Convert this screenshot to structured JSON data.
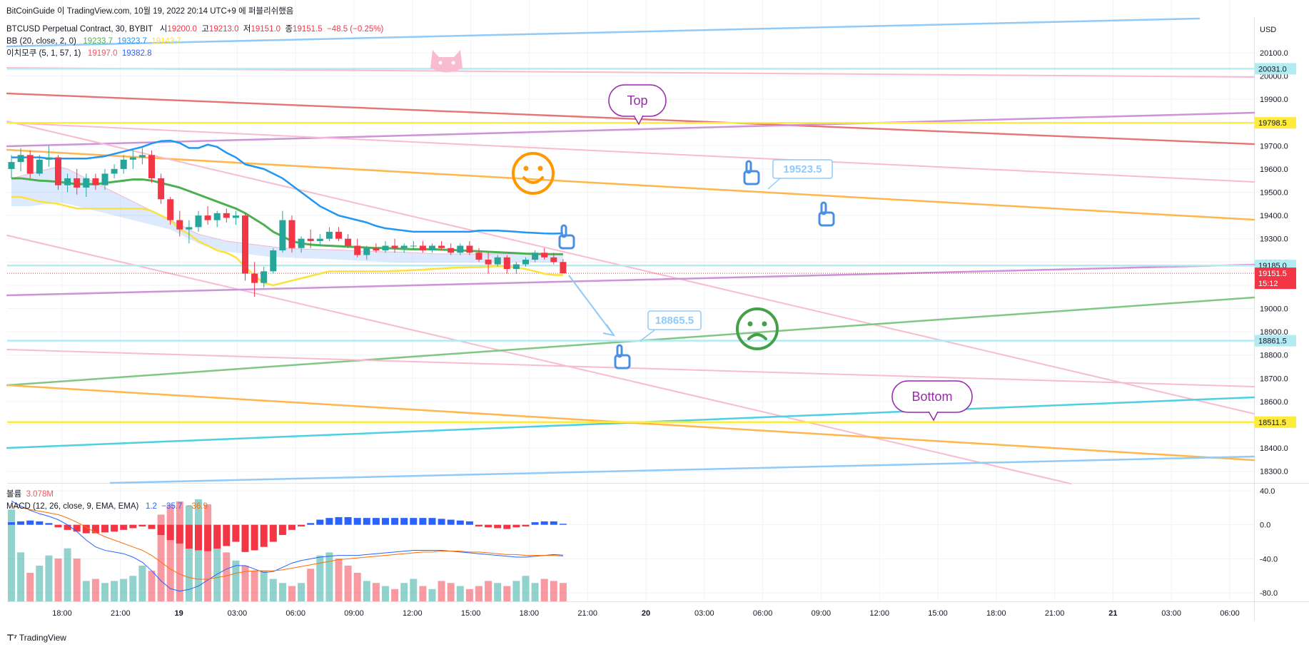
{
  "header": {
    "attribution": "BitCoinGuide 이 TradingView.com, 10월 19, 2022 20:14 UTC+9 에 퍼블리쉬했음",
    "symbol": "BTCUSD Perpetual Contract, 30, BYBIT",
    "open_label": "시",
    "open_value": "19200.0",
    "high_label": "고",
    "high_value": "19213.0",
    "low_label": "저",
    "low_value": "19151.0",
    "close_label": "종",
    "close_value": "19151.5",
    "change": "−48.5 (−0.25%)",
    "bb_label": "BB (20, close, 2, 0)",
    "bb_basis": "19233.7",
    "bb_upper": "19323.7",
    "bb_lower": "19143.7",
    "ichimoku_label": "이치모쿠 (5, 1, 57, 1)",
    "ichimoku_a": "19197.0",
    "ichimoku_b": "19382.8",
    "volume_label": "볼륨",
    "volume_value": "3.078M",
    "macd_label": "MACD (12, 26, close, 9, EMA, EMA)",
    "macd_hist": "1.2",
    "macd_line": "−35.7",
    "macd_signal": "−36.9",
    "brand": "TradingView",
    "brand_icon": "tradingview-logo-icon"
  },
  "colors": {
    "up": "#26a69a",
    "down": "#f23645",
    "bb_basis": "#4caf50",
    "bb_upper": "#2196f3",
    "bb_lower": "#fbe23c",
    "grid": "#f0f3fa",
    "axis_text": "#131722"
  },
  "chart_data": [
    {
      "type": "candlestick",
      "title": "BTCUSD Perpetual Contract, 30, BYBIT",
      "y_axis": {
        "currency": "USD",
        "range": [
          18250,
          20250
        ],
        "ticks": [
          "20100.0",
          "20000.0",
          "19900.0",
          "19800.0",
          "19700.0",
          "19600.0",
          "19500.0",
          "19400.0",
          "19300.0",
          "19200.0",
          "19100.0",
          "19000.0",
          "18900.0",
          "18800.0",
          "18700.0",
          "18600.0",
          "18500.0",
          "18400.0",
          "18300.0"
        ]
      },
      "x_axis": {
        "ticks": [
          "18:00",
          "21:00",
          "19",
          "03:00",
          "06:00",
          "09:00",
          "12:00",
          "15:00",
          "18:00",
          "21:00",
          "20",
          "03:00",
          "06:00",
          "09:00",
          "12:00",
          "15:00",
          "18:00",
          "21:00",
          "21",
          "03:00",
          "06:00"
        ],
        "bar_interval_minutes": 30
      },
      "price_labels": [
        {
          "value": 20031.0,
          "text": "20031.0",
          "bg": "#b2ebf2"
        },
        {
          "value": 19798.5,
          "text": "19798.5",
          "bg": "#ffeb3b"
        },
        {
          "value": 19185.0,
          "text": "19185.0",
          "bg": "#b2ebf2"
        },
        {
          "value": 19151.5,
          "text": "19151.5",
          "bg": "#f23645",
          "sub": "15:12"
        },
        {
          "value": 18861.5,
          "text": "18861.5",
          "bg": "#b2ebf2"
        },
        {
          "value": 18511.5,
          "text": "18511.5",
          "bg": "#ffeb3b"
        }
      ],
      "horizontal_lines": [
        {
          "value": 20031.0,
          "color": "#b2ebf2"
        },
        {
          "value": 19798.5,
          "color": "#ffeb3b"
        },
        {
          "value": 19185.0,
          "color": "#b2ebf2"
        },
        {
          "value": 18861.5,
          "color": "#b2ebf2"
        },
        {
          "value": 18511.5,
          "color": "#ffeb3b"
        }
      ],
      "candles": [
        [
          19600,
          19660,
          19560,
          19630
        ],
        [
          19630,
          19690,
          19590,
          19660
        ],
        [
          19660,
          19680,
          19560,
          19580
        ],
        [
          19580,
          19660,
          19570,
          19640
        ],
        [
          19640,
          19700,
          19610,
          19650
        ],
        [
          19650,
          19660,
          19510,
          19530
        ],
        [
          19530,
          19580,
          19500,
          19560
        ],
        [
          19560,
          19600,
          19490,
          19520
        ],
        [
          19520,
          19580,
          19480,
          19560
        ],
        [
          19560,
          19580,
          19510,
          19530
        ],
        [
          19530,
          19600,
          19510,
          19580
        ],
        [
          19580,
          19620,
          19560,
          19600
        ],
        [
          19600,
          19660,
          19580,
          19640
        ],
        [
          19640,
          19680,
          19600,
          19650
        ],
        [
          19650,
          19690,
          19620,
          19660
        ],
        [
          19660,
          19680,
          19540,
          19560
        ],
        [
          19560,
          19580,
          19450,
          19470
        ],
        [
          19470,
          19480,
          19360,
          19380
        ],
        [
          19380,
          19420,
          19310,
          19340
        ],
        [
          19340,
          19380,
          19280,
          19350
        ],
        [
          19350,
          19420,
          19330,
          19400
        ],
        [
          19400,
          19440,
          19360,
          19380
        ],
        [
          19380,
          19420,
          19350,
          19410
        ],
        [
          19410,
          19430,
          19370,
          19390
        ],
        [
          19390,
          19420,
          19360,
          19400
        ],
        [
          19400,
          19410,
          19120,
          19150
        ],
        [
          19150,
          19200,
          19050,
          19110
        ],
        [
          19110,
          19180,
          19090,
          19160
        ],
        [
          19160,
          19260,
          19150,
          19250
        ],
        [
          19250,
          19420,
          19240,
          19380
        ],
        [
          19380,
          19400,
          19240,
          19260
        ],
        [
          19260,
          19310,
          19240,
          19300
        ],
        [
          19300,
          19340,
          19260,
          19290
        ],
        [
          19290,
          19320,
          19270,
          19300
        ],
        [
          19300,
          19350,
          19290,
          19330
        ],
        [
          19330,
          19350,
          19290,
          19300
        ],
        [
          19300,
          19320,
          19260,
          19270
        ],
        [
          19270,
          19300,
          19220,
          19230
        ],
        [
          19230,
          19270,
          19210,
          19260
        ],
        [
          19260,
          19280,
          19240,
          19250
        ],
        [
          19250,
          19290,
          19240,
          19270
        ],
        [
          19270,
          19300,
          19240,
          19260
        ],
        [
          19260,
          19280,
          19240,
          19270
        ],
        [
          19270,
          19290,
          19250,
          19270
        ],
        [
          19270,
          19290,
          19240,
          19250
        ],
        [
          19250,
          19280,
          19240,
          19270
        ],
        [
          19270,
          19290,
          19250,
          19260
        ],
        [
          19260,
          19280,
          19230,
          19240
        ],
        [
          19240,
          19280,
          19230,
          19270
        ],
        [
          19270,
          19290,
          19230,
          19240
        ],
        [
          19240,
          19260,
          19200,
          19210
        ],
        [
          19210,
          19240,
          19150,
          19190
        ],
        [
          19190,
          19230,
          19180,
          19220
        ],
        [
          19220,
          19230,
          19150,
          19170
        ],
        [
          19170,
          19200,
          19150,
          19190
        ],
        [
          19190,
          19220,
          19180,
          19210
        ],
        [
          19210,
          19250,
          19200,
          19240
        ],
        [
          19240,
          19260,
          19210,
          19220
        ],
        [
          19220,
          19240,
          19190,
          19200
        ],
        [
          19200,
          19213,
          19151,
          19151.5
        ]
      ],
      "bb_upper": [
        19650,
        19650,
        19650,
        19650,
        19645,
        19645,
        19645,
        19645,
        19645,
        19650,
        19655,
        19665,
        19675,
        19685,
        19695,
        19710,
        19720,
        19722,
        19712,
        19690,
        19690,
        19705,
        19695,
        19670,
        19650,
        19620,
        19610,
        19600,
        19580,
        19560,
        19530,
        19500,
        19470,
        19440,
        19420,
        19400,
        19390,
        19380,
        19370,
        19355,
        19345,
        19340,
        19335,
        19330,
        19330,
        19330,
        19330,
        19330,
        19330,
        19330,
        19335,
        19335,
        19335,
        19333,
        19330,
        19327,
        19325,
        19323,
        19322,
        19323.7
      ],
      "bb_basis": [
        19560,
        19560,
        19555,
        19550,
        19548,
        19545,
        19540,
        19535,
        19535,
        19535,
        19540,
        19545,
        19550,
        19555,
        19555,
        19550,
        19540,
        19530,
        19520,
        19505,
        19490,
        19475,
        19460,
        19445,
        19430,
        19410,
        19385,
        19360,
        19330,
        19310,
        19290,
        19280,
        19275,
        19272,
        19270,
        19268,
        19266,
        19264,
        19262,
        19260,
        19260,
        19258,
        19256,
        19255,
        19255,
        19255,
        19253,
        19252,
        19250,
        19248,
        19246,
        19244,
        19242,
        19240,
        19238,
        19236,
        19235,
        19234,
        19234,
        19233.7
      ],
      "bb_lower": [
        19480,
        19480,
        19470,
        19460,
        19455,
        19450,
        19440,
        19430,
        19430,
        19430,
        19430,
        19430,
        19430,
        19430,
        19430,
        19420,
        19400,
        19380,
        19340,
        19320,
        19290,
        19270,
        19250,
        19240,
        19220,
        19180,
        19140,
        19110,
        19100,
        19110,
        19120,
        19130,
        19140,
        19150,
        19160,
        19160,
        19160,
        19160,
        19160,
        19160,
        19160,
        19162,
        19163,
        19165,
        19167,
        19170,
        19172,
        19175,
        19176,
        19177,
        19178,
        19180,
        19182,
        19180,
        19176,
        19170,
        19160,
        19150,
        19144,
        19143.7
      ],
      "ichimoku_cloud_top": [
        19560,
        19570,
        19580,
        19590,
        19600,
        19610,
        19600,
        19580,
        19560,
        19540,
        19520,
        19500,
        19480,
        19460,
        19440,
        19420,
        19400,
        19380,
        19360,
        19340,
        19320,
        19310,
        19300,
        19290,
        19285,
        19280,
        19275,
        19270,
        19265,
        19260,
        19258,
        19256,
        19255,
        19254,
        19253,
        19252,
        19250,
        19248,
        19246,
        19245,
        19244,
        19243,
        19242,
        19240,
        19238,
        19236,
        19235,
        19235,
        19235,
        19235,
        19235,
        19235,
        19235,
        19235,
        19235,
        19235,
        19235,
        19235,
        19235,
        19235
      ],
      "ichimoku_cloud_bottom": [
        19440,
        19440,
        19440,
        19445,
        19450,
        19455,
        19450,
        19440,
        19430,
        19420,
        19410,
        19400,
        19390,
        19380,
        19370,
        19360,
        19350,
        19340,
        19320,
        19300,
        19280,
        19265,
        19255,
        19245,
        19240,
        19235,
        19230,
        19225,
        19222,
        19220,
        19218,
        19216,
        19215,
        19214,
        19212,
        19210,
        19208,
        19206,
        19204,
        19202,
        19200,
        19198,
        19197,
        19197,
        19197,
        19197,
        19197,
        19197,
        19197,
        19197,
        19197,
        19197,
        19197,
        19197,
        19197,
        19197,
        19197,
        19197,
        19197,
        19197.0
      ]
    },
    {
      "type": "bar",
      "title": "MACD (12, 26, close, 9, EMA, EMA)",
      "y_axis": {
        "range": [
          -90,
          45
        ],
        "ticks": [
          "40.0",
          "0.0",
          "-40.0",
          "-80.0"
        ]
      },
      "volume": [
        90,
        48,
        28,
        35,
        45,
        42,
        52,
        42,
        20,
        22,
        18,
        20,
        22,
        25,
        35,
        30,
        85,
        95,
        98,
        94,
        100,
        95,
        70,
        48,
        40,
        35,
        30,
        30,
        22,
        18,
        15,
        18,
        32,
        45,
        48,
        42,
        35,
        28,
        20,
        18,
        15,
        12,
        18,
        22,
        15,
        12,
        20,
        18,
        15,
        12,
        15,
        20,
        18,
        15,
        20,
        25,
        18,
        22,
        20,
        18
      ],
      "macd_hist": [
        3,
        4,
        5,
        4,
        2,
        -3,
        -6,
        -8,
        -10,
        -10,
        -9,
        -8,
        -6,
        -4,
        -2,
        -5,
        -12,
        -18,
        -22,
        -28,
        -30,
        -31,
        -28,
        -25,
        -20,
        -32,
        -30,
        -26,
        -20,
        -12,
        -6,
        -2,
        2,
        6,
        8,
        9,
        9,
        8,
        8,
        8,
        8,
        8,
        8,
        8,
        8,
        8,
        7,
        6,
        5,
        4,
        -2,
        -3,
        -4,
        -5,
        -3,
        -2,
        3,
        4,
        4,
        1.2
      ],
      "macd_line": [
        28,
        22,
        17,
        13,
        10,
        6,
        0,
        -8,
        -18,
        -26,
        -30,
        -32,
        -34,
        -38,
        -44,
        -54,
        -66,
        -75,
        -78,
        -76,
        -72,
        -65,
        -58,
        -52,
        -48,
        -48,
        -52,
        -56,
        -55,
        -50,
        -45,
        -42,
        -40,
        -38,
        -37,
        -36,
        -36,
        -36,
        -35,
        -34,
        -33,
        -32,
        -31,
        -30,
        -30,
        -30,
        -30,
        -31,
        -32,
        -33,
        -34,
        -35,
        -36,
        -37,
        -38,
        -38,
        -37,
        -36,
        -35,
        -35.7
      ],
      "macd_signal": [
        22,
        20,
        18,
        16,
        14,
        12,
        8,
        3,
        -3,
        -9,
        -14,
        -18,
        -22,
        -26,
        -30,
        -36,
        -44,
        -52,
        -58,
        -62,
        -64,
        -64,
        -62,
        -60,
        -57,
        -55,
        -54,
        -54,
        -54,
        -53,
        -51,
        -49,
        -47,
        -45,
        -43,
        -41,
        -40,
        -39,
        -38,
        -37,
        -36,
        -35,
        -34,
        -33,
        -32,
        -32,
        -31,
        -31,
        -31,
        -32,
        -32,
        -33,
        -34,
        -35,
        -35,
        -36,
        -36,
        -36,
        -36,
        -36.9
      ]
    }
  ],
  "drawings": {
    "labels": [
      {
        "text": "Top",
        "bubble_color": "#9c27b0"
      },
      {
        "text": "Bottom",
        "bubble_color": "#9c27b0"
      },
      {
        "text": "19523.5",
        "color": "#90caf9"
      },
      {
        "text": "18865.5",
        "color": "#90caf9"
      }
    ],
    "icons": [
      "cat-face-icon",
      "smiley-face-icon",
      "sad-face-icon",
      "pointing-hand-icon"
    ]
  }
}
